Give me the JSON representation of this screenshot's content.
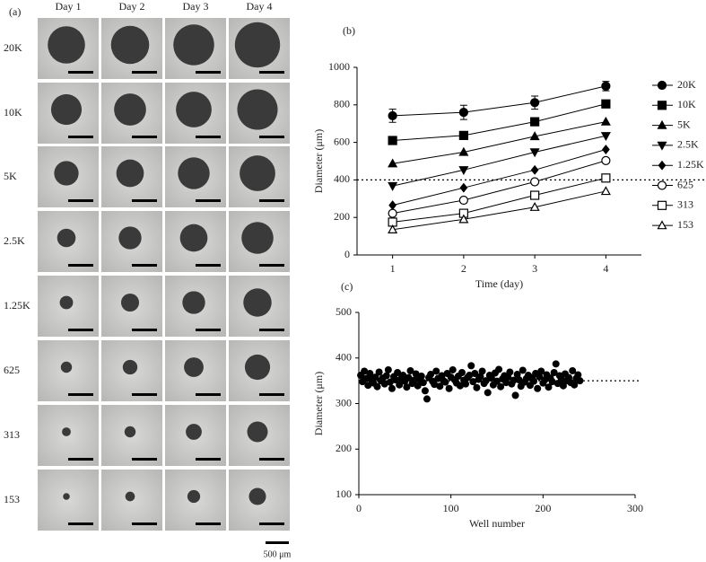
{
  "panel_a": {
    "label": "(a)",
    "columns": [
      "Day 1",
      "Day 2",
      "Day 3",
      "Day 4"
    ],
    "rows": [
      "20K",
      "10K",
      "5K",
      "2.5K",
      "1.25K",
      "625",
      "313",
      "153"
    ],
    "scale_label": "500 μm"
  },
  "chart_data": [
    {
      "type": "line",
      "label": "(b)",
      "xlabel": "Time (day)",
      "ylabel": "Diameter (μm)",
      "x": [
        1,
        2,
        3,
        4
      ],
      "xlim": [
        0.5,
        4.5
      ],
      "xticks": [
        1,
        2,
        3,
        4
      ],
      "ylim": [
        0,
        1000
      ],
      "yticks": [
        0,
        200,
        400,
        600,
        800,
        1000
      ],
      "hline": 400,
      "legend": "right",
      "series": [
        {
          "name": "20K",
          "color": "#000000",
          "marker": "circle",
          "filled": true,
          "values": [
            742,
            760,
            812,
            900
          ],
          "errors": [
            35,
            38,
            35,
            25
          ]
        },
        {
          "name": "10K",
          "color": "#000000",
          "marker": "square",
          "filled": true,
          "values": [
            610,
            637,
            710,
            805
          ]
        },
        {
          "name": "5K",
          "color": "#000000",
          "marker": "triangle",
          "filled": true,
          "values": [
            487,
            548,
            632,
            710
          ]
        },
        {
          "name": "2.5K",
          "color": "#000000",
          "marker": "triangle-down",
          "filled": true,
          "values": [
            368,
            453,
            548,
            635
          ]
        },
        {
          "name": "1.25K",
          "color": "#000000",
          "marker": "diamond",
          "filled": true,
          "values": [
            265,
            358,
            453,
            562
          ]
        },
        {
          "name": "625",
          "color": "#000000",
          "marker": "circle",
          "filled": false,
          "values": [
            222,
            292,
            390,
            503
          ]
        },
        {
          "name": "313",
          "color": "#000000",
          "marker": "square",
          "filled": false,
          "values": [
            175,
            222,
            318,
            410
          ]
        },
        {
          "name": "153",
          "color": "#000000",
          "marker": "triangle",
          "filled": false,
          "values": [
            135,
            190,
            255,
            340
          ]
        }
      ]
    },
    {
      "type": "scatter",
      "label": "(c)",
      "xlabel": "Well number",
      "ylabel": "Diameter (μm)",
      "xlim": [
        0,
        300
      ],
      "xticks": [
        0,
        100,
        200,
        300
      ],
      "ylim": [
        100,
        500
      ],
      "yticks": [
        100,
        200,
        300,
        400,
        500
      ],
      "hline": 350,
      "color": "#000000",
      "x": [
        2,
        4,
        6,
        8,
        10,
        12,
        14,
        16,
        18,
        20,
        22,
        24,
        26,
        28,
        30,
        32,
        34,
        36,
        38,
        40,
        42,
        44,
        46,
        48,
        50,
        52,
        54,
        56,
        58,
        60,
        62,
        64,
        66,
        68,
        70,
        72,
        74,
        76,
        78,
        80,
        82,
        84,
        86,
        88,
        90,
        92,
        94,
        96,
        98,
        100,
        102,
        104,
        106,
        108,
        110,
        112,
        114,
        116,
        118,
        120,
        122,
        124,
        126,
        128,
        130,
        132,
        134,
        136,
        138,
        140,
        142,
        144,
        146,
        148,
        150,
        152,
        154,
        156,
        158,
        160,
        162,
        164,
        166,
        168,
        170,
        172,
        174,
        176,
        178,
        180,
        182,
        184,
        186,
        188,
        190,
        192,
        194,
        196,
        198,
        200,
        202,
        204,
        206,
        208,
        210,
        212,
        214,
        216,
        218,
        220,
        222,
        224,
        226,
        228,
        230,
        232,
        234,
        236,
        238,
        240
      ],
      "values": [
        362,
        348,
        371,
        355,
        340,
        366,
        352,
        345,
        358,
        337,
        369,
        350,
        356,
        343,
        361,
        374,
        347,
        333,
        359,
        352,
        368,
        341,
        355,
        362,
        349,
        336,
        357,
        372,
        344,
        351,
        365,
        339,
        353,
        360,
        346,
        328,
        310,
        357,
        364,
        349,
        342,
        371,
        355,
        338,
        361,
        350,
        347,
        366,
        333,
        358,
        374,
        352,
        345,
        360,
        339,
        368,
        351,
        343,
        357,
        362,
        383,
        348,
        366,
        335,
        353,
        359,
        371,
        344,
        350,
        324,
        362,
        356,
        341,
        367,
        349,
        375,
        337,
        354,
        361,
        346,
        358,
        369,
        343,
        351,
        318,
        364,
        352,
        338,
        373,
        347,
        355,
        362,
        340,
        357,
        349,
        366,
        333,
        359,
        371,
        345,
        352,
        363,
        336,
        356,
        348,
        368,
        387,
        344,
        361,
        353,
        339,
        365,
        350,
        357,
        346,
        372,
        341,
        355,
        363,
        350
      ]
    }
  ]
}
